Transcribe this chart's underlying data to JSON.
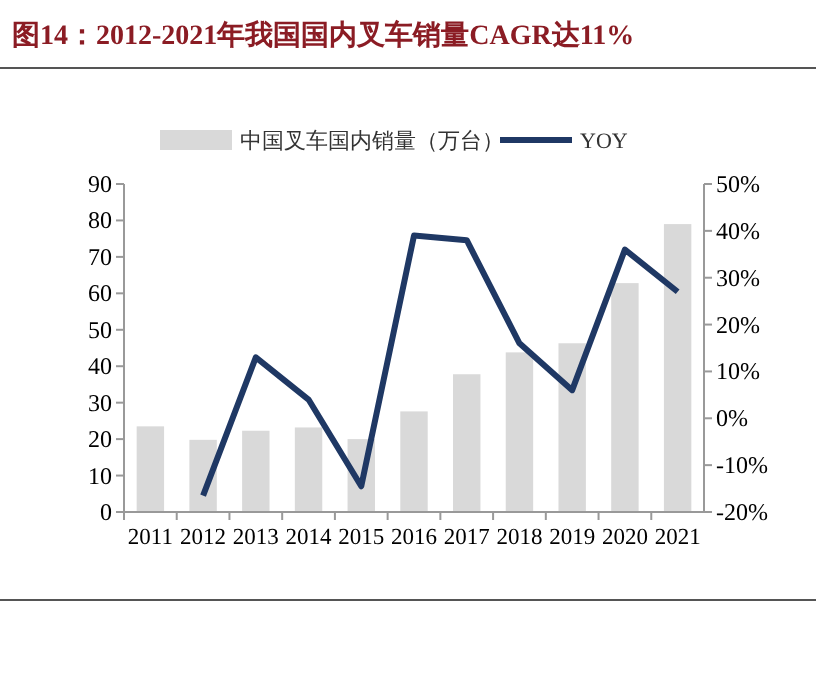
{
  "chart_data": {
    "type": "bar",
    "title": "图14：2012-2021年我国国内叉车销量CAGR达11%",
    "categories": [
      "2011",
      "2012",
      "2013",
      "2014",
      "2015",
      "2016",
      "2017",
      "2018",
      "2019",
      "2020",
      "2021"
    ],
    "series": [
      {
        "name": "中国叉车国内销量（万台）",
        "color": "#d9d9d9",
        "values": [
          23.5,
          19.8,
          22.3,
          23.2,
          20.0,
          27.6,
          37.8,
          43.8,
          46.3,
          62.8,
          79.0
        ]
      },
      {
        "name": "YOY",
        "type": "line",
        "axis": "y2",
        "color": "#1f3864",
        "values": [
          null,
          -16.5,
          13,
          4,
          -14.5,
          39,
          38,
          16,
          6,
          36,
          27
        ]
      }
    ],
    "ylim": [
      0,
      90
    ],
    "yticks": [
      0,
      10,
      20,
      30,
      40,
      50,
      60,
      70,
      80,
      90
    ],
    "y2lim": [
      -20,
      50
    ],
    "y2ticks": [
      {
        "value": -20,
        "label": "-20%"
      },
      {
        "value": -10,
        "label": "-10%"
      },
      {
        "value": 0,
        "label": "0%"
      },
      {
        "value": 10,
        "label": "10%"
      },
      {
        "value": 20,
        "label": "20%"
      },
      {
        "value": 30,
        "label": "30%"
      },
      {
        "value": 40,
        "label": "40%"
      },
      {
        "value": 50,
        "label": "50%"
      }
    ],
    "legend": "top",
    "grid": false,
    "marker": "none"
  }
}
